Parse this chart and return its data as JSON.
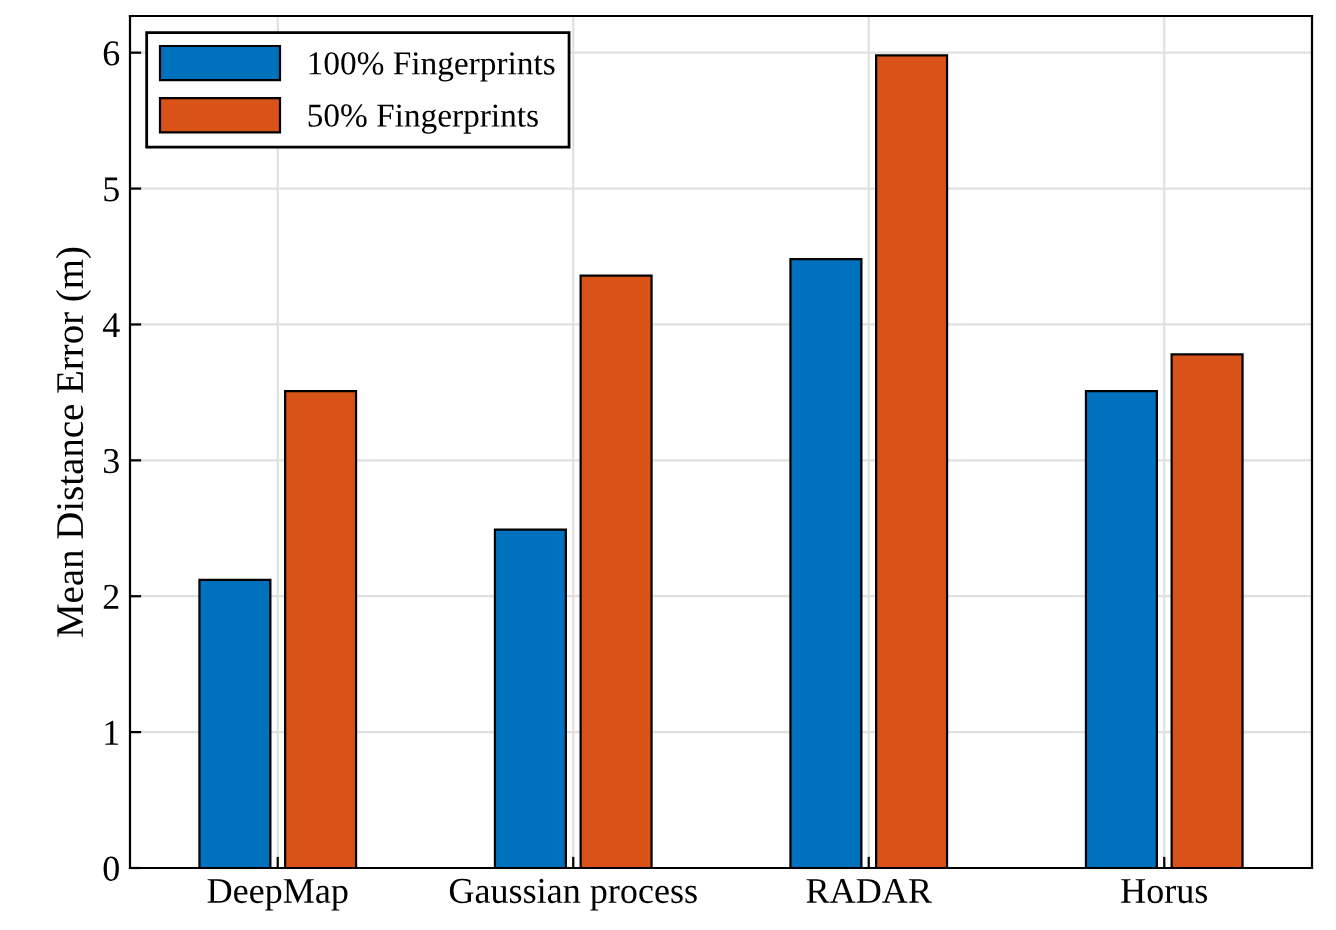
{
  "chart_data": {
    "type": "bar",
    "ylabel": "Mean Distance Error (m)",
    "categories": [
      "DeepMap",
      "Gaussian process",
      "RADAR",
      "Horus"
    ],
    "series": [
      {
        "name": "100% Fingerprints",
        "color": "#0072bd",
        "values": [
          2.12,
          2.49,
          4.48,
          3.51
        ]
      },
      {
        "name": "50% Fingerprints",
        "color": "#d95319",
        "values": [
          3.51,
          4.36,
          5.98,
          3.78
        ]
      }
    ],
    "ylim": [
      0,
      6.27
    ],
    "yticks": [
      0,
      1,
      2,
      3,
      4,
      5,
      6
    ],
    "grid": true,
    "legend": "top left"
  }
}
